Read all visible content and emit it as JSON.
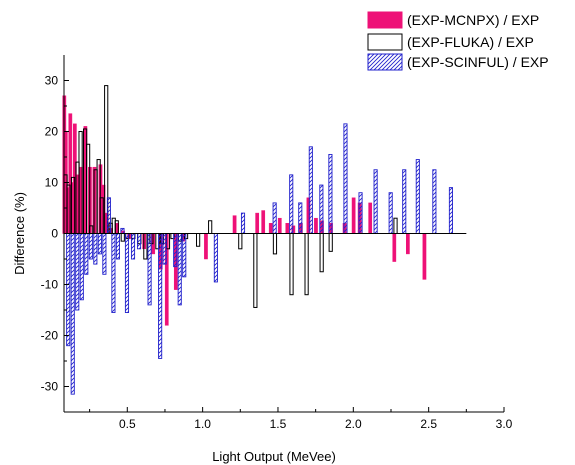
{
  "chart_data": {
    "type": "bar",
    "xlabel": "Light Output (MeVee)",
    "ylabel": "Difference (%)",
    "xlim": [
      0.08,
      3.0
    ],
    "ylim": [
      -35,
      35
    ],
    "xticks": [
      0.5,
      1.0,
      1.5,
      2.0,
      2.5,
      3.0
    ],
    "xtick_labels": [
      "0.5",
      "1.0",
      "1.5",
      "2.0",
      "2.5",
      "3.0"
    ],
    "yticks": [
      -30,
      -20,
      -10,
      0,
      10,
      20,
      30
    ],
    "ytick_labels": [
      "-30",
      "-20",
      "-10",
      "0",
      "10",
      "20",
      "30"
    ],
    "grid": false,
    "legend_position": "top-right",
    "colors": {
      "mcnpx": "#ee1177",
      "fluka": "#000000",
      "scinful": "#2222cc"
    },
    "series": [
      {
        "name": "(EXP-MCNPX) / EXP",
        "style": "solid-fill",
        "points": [
          [
            0.09,
            27
          ],
          [
            0.1,
            20
          ],
          [
            0.11,
            9
          ],
          [
            0.13,
            23.5
          ],
          [
            0.14,
            10
          ],
          [
            0.16,
            21.5
          ],
          [
            0.18,
            11.5
          ],
          [
            0.2,
            13
          ],
          [
            0.23,
            21
          ],
          [
            0.26,
            13
          ],
          [
            0.29,
            13
          ],
          [
            0.33,
            13.5
          ],
          [
            0.35,
            9.5
          ],
          [
            0.37,
            4
          ],
          [
            0.4,
            1
          ],
          [
            0.44,
            2
          ],
          [
            0.48,
            0.5
          ],
          [
            0.52,
            -1
          ],
          [
            0.62,
            -3
          ],
          [
            0.68,
            -4
          ],
          [
            0.73,
            -7
          ],
          [
            0.77,
            -18
          ],
          [
            0.83,
            -11
          ],
          [
            0.88,
            -1.5
          ],
          [
            1.03,
            -5
          ],
          [
            1.22,
            3.5
          ],
          [
            1.37,
            4
          ],
          [
            1.41,
            4.5
          ],
          [
            1.46,
            2
          ],
          [
            1.52,
            3
          ],
          [
            1.57,
            2
          ],
          [
            1.61,
            1.5
          ],
          [
            1.66,
            2
          ],
          [
            1.71,
            7
          ],
          [
            1.76,
            3
          ],
          [
            1.8,
            2.5
          ],
          [
            1.86,
            2
          ],
          [
            1.95,
            2
          ],
          [
            2.01,
            7
          ],
          [
            2.05,
            6
          ],
          [
            2.12,
            6
          ],
          [
            2.28,
            -5.5
          ],
          [
            2.37,
            -4
          ],
          [
            2.48,
            -9
          ]
        ]
      },
      {
        "name": "(EXP-FLUKA) / EXP",
        "style": "outline",
        "points": [
          [
            0.09,
            11.5
          ],
          [
            0.11,
            9.5
          ],
          [
            0.14,
            11
          ],
          [
            0.17,
            14
          ],
          [
            0.19,
            20
          ],
          [
            0.22,
            20.5
          ],
          [
            0.24,
            17.5
          ],
          [
            0.26,
            1.5
          ],
          [
            0.29,
            12.5
          ],
          [
            0.31,
            14.5
          ],
          [
            0.33,
            7
          ],
          [
            0.36,
            29
          ],
          [
            0.39,
            2
          ],
          [
            0.41,
            3
          ],
          [
            0.43,
            2.5
          ],
          [
            0.47,
            -1.5
          ],
          [
            0.5,
            -1
          ],
          [
            0.54,
            -1
          ],
          [
            0.58,
            -2
          ],
          [
            0.62,
            -5
          ],
          [
            0.66,
            -2
          ],
          [
            0.7,
            -3
          ],
          [
            0.73,
            -2
          ],
          [
            0.77,
            -3
          ],
          [
            0.8,
            -1
          ],
          [
            0.85,
            -1.5
          ],
          [
            0.89,
            -1
          ],
          [
            0.97,
            -2.5
          ],
          [
            1.05,
            2.5
          ],
          [
            1.25,
            -3
          ],
          [
            1.35,
            -14.5
          ],
          [
            1.48,
            -4
          ],
          [
            1.59,
            -12
          ],
          [
            1.69,
            -12
          ],
          [
            1.79,
            -7.5
          ],
          [
            1.85,
            -3.5
          ],
          [
            2.28,
            3
          ]
        ]
      },
      {
        "name": "(EXP-SCINFUL) / EXP",
        "style": "hatched",
        "points": [
          [
            0.1,
            -22
          ],
          [
            0.13,
            -31.5
          ],
          [
            0.16,
            -15
          ],
          [
            0.19,
            -13
          ],
          [
            0.22,
            -8
          ],
          [
            0.25,
            -5
          ],
          [
            0.28,
            -6
          ],
          [
            0.31,
            -4
          ],
          [
            0.34,
            -8
          ],
          [
            0.37,
            7
          ],
          [
            0.4,
            -15.5
          ],
          [
            0.43,
            -5
          ],
          [
            0.46,
            1
          ],
          [
            0.49,
            -15.5
          ],
          [
            0.53,
            -5
          ],
          [
            0.57,
            -3
          ],
          [
            0.64,
            -14
          ],
          [
            0.71,
            -24.5
          ],
          [
            0.74,
            -6
          ],
          [
            0.81,
            -6.5
          ],
          [
            0.84,
            -14
          ],
          [
            0.87,
            -8.5
          ],
          [
            1.08,
            -9.5
          ],
          [
            1.26,
            4
          ],
          [
            1.47,
            6
          ],
          [
            1.58,
            11.5
          ],
          [
            1.64,
            6
          ],
          [
            1.71,
            17
          ],
          [
            1.78,
            9.5
          ],
          [
            1.84,
            15.5
          ],
          [
            1.94,
            21.5
          ],
          [
            2.04,
            8
          ],
          [
            2.14,
            12.5
          ],
          [
            2.24,
            8
          ],
          [
            2.33,
            12.5
          ],
          [
            2.42,
            14.5
          ],
          [
            2.53,
            12.5
          ],
          [
            2.64,
            9
          ]
        ]
      }
    ]
  }
}
